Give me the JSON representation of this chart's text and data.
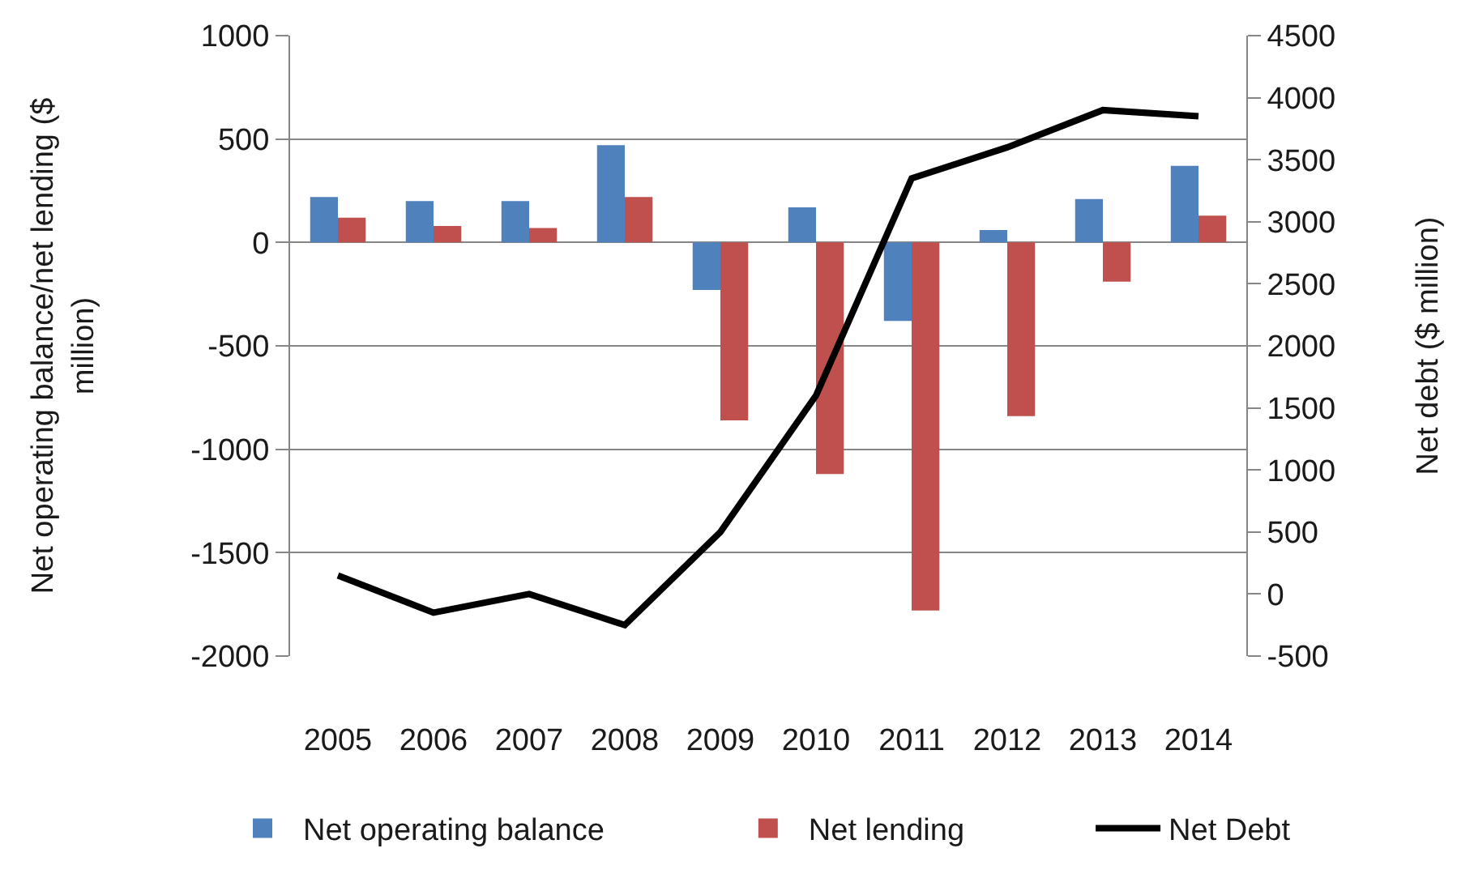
{
  "chart_data": {
    "type": "bar",
    "categories": [
      "2005",
      "2006",
      "2007",
      "2008",
      "2009",
      "2010",
      "2011",
      "2012",
      "2013",
      "2014"
    ],
    "ylabel": "Net operating balance/net lending ($ million)",
    "y2label": "Net debt ($ million)",
    "series": [
      {
        "name": "Net operating balance",
        "color": "#4f81bd",
        "values": [
          220,
          200,
          200,
          470,
          -230,
          170,
          -380,
          60,
          210,
          370
        ]
      },
      {
        "name": "Net lending",
        "color": "#c0504d",
        "values": [
          120,
          80,
          70,
          220,
          -860,
          -1120,
          -1780,
          -840,
          -190,
          130
        ]
      },
      {
        "name": "Net Debt",
        "type": "line",
        "axis": "y2",
        "color": "#000000",
        "values": [
          150,
          -150,
          0,
          -250,
          500,
          1600,
          3350,
          3600,
          3900,
          3850
        ]
      }
    ],
    "ylim": [
      -2000,
      1000
    ],
    "yticks": [
      -2000,
      -1500,
      -1000,
      -500,
      0,
      500,
      1000
    ],
    "y2lim": [
      -500,
      4500
    ],
    "y2ticks": [
      -500,
      0,
      500,
      1000,
      1500,
      2000,
      2500,
      3000,
      3500,
      4000,
      4500
    ],
    "grid": "y",
    "legend": "bottom",
    "marker": "none",
    "line_style": "solid"
  }
}
